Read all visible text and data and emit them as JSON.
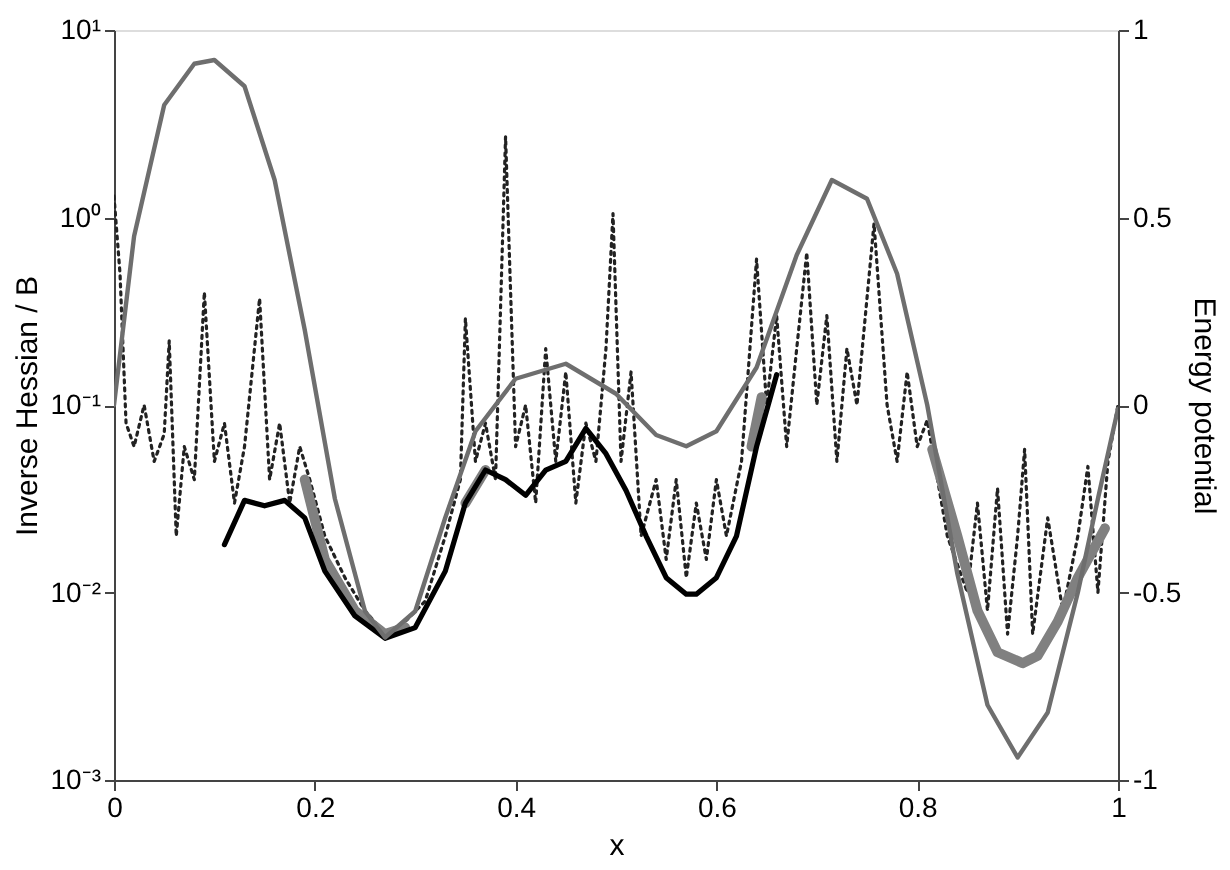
{
  "chart_data": {
    "type": "line",
    "xlabel": "x",
    "ylabel": "Inverse Hessian / B",
    "y2label": "Energy potential",
    "xlim": [
      0,
      1
    ],
    "xticks": [
      0,
      0.2,
      0.4,
      0.6,
      0.8,
      1
    ],
    "log": "y",
    "ylim": [
      0.001,
      10
    ],
    "yticks": [
      {
        "value": 0.001,
        "label": "10⁻³"
      },
      {
        "value": 0.01,
        "label": "10⁻²"
      },
      {
        "value": 0.1,
        "label": "10⁻¹"
      },
      {
        "value": 1,
        "label": "10⁰"
      },
      {
        "value": 10,
        "label": "10¹"
      }
    ],
    "y2lim": [
      -1,
      1
    ],
    "y2ticks": [
      -1,
      -0.5,
      0,
      0.5,
      1
    ],
    "grid": false,
    "marker": "none",
    "series": [
      {
        "color": "#222222",
        "line_style": "dotted",
        "x": [
          0.0,
          0.006,
          0.012,
          0.02,
          0.03,
          0.04,
          0.05,
          0.055,
          0.062,
          0.07,
          0.08,
          0.09,
          0.1,
          0.11,
          0.12,
          0.13,
          0.145,
          0.155,
          0.165,
          0.175,
          0.185,
          0.195,
          0.21,
          0.23,
          0.25,
          0.27,
          0.29,
          0.31,
          0.33,
          0.345,
          0.35,
          0.36,
          0.37,
          0.38,
          0.39,
          0.4,
          0.41,
          0.42,
          0.43,
          0.44,
          0.45,
          0.46,
          0.47,
          0.48,
          0.49,
          0.497,
          0.505,
          0.515,
          0.525,
          0.54,
          0.55,
          0.56,
          0.57,
          0.58,
          0.59,
          0.6,
          0.61,
          0.625,
          0.64,
          0.65,
          0.66,
          0.67,
          0.68,
          0.69,
          0.7,
          0.71,
          0.72,
          0.73,
          0.74,
          0.757,
          0.77,
          0.78,
          0.79,
          0.8,
          0.81,
          0.83,
          0.85,
          0.86,
          0.87,
          0.88,
          0.89,
          0.9,
          0.907,
          0.915,
          0.93,
          0.945,
          0.96,
          0.97,
          0.98,
          0.99,
          1.0
        ],
        "values": [
          1.3,
          0.5,
          0.08,
          0.06,
          0.1,
          0.05,
          0.07,
          0.22,
          0.02,
          0.06,
          0.04,
          0.4,
          0.05,
          0.08,
          0.03,
          0.06,
          0.37,
          0.04,
          0.08,
          0.03,
          0.06,
          0.04,
          0.02,
          0.012,
          0.008,
          0.006,
          0.007,
          0.009,
          0.02,
          0.04,
          0.29,
          0.05,
          0.08,
          0.04,
          2.7,
          0.06,
          0.1,
          0.03,
          0.2,
          0.05,
          0.15,
          0.03,
          0.08,
          0.05,
          0.2,
          1.05,
          0.05,
          0.15,
          0.02,
          0.04,
          0.015,
          0.04,
          0.012,
          0.03,
          0.015,
          0.04,
          0.02,
          0.05,
          0.6,
          0.1,
          0.3,
          0.06,
          0.2,
          0.65,
          0.1,
          0.3,
          0.05,
          0.2,
          0.1,
          0.93,
          0.1,
          0.05,
          0.15,
          0.06,
          0.083,
          0.02,
          0.01,
          0.03,
          0.008,
          0.036,
          0.006,
          0.02,
          0.058,
          0.006,
          0.025,
          0.008,
          0.02,
          0.047,
          0.01,
          0.05,
          0.1
        ]
      },
      {
        "color": "#808080",
        "line_style": "solid",
        "x": [
          0.19,
          0.21,
          0.24,
          0.27,
          0.29,
          0.32,
          0.35,
          0.37,
          0.5,
          0.635,
          0.645,
          0.7,
          0.815,
          0.84,
          0.86,
          0.88,
          0.905,
          0.92,
          0.94,
          0.96,
          0.987
        ],
        "values": [
          0.04,
          0.015,
          0.008,
          0.006,
          0.0065,
          null,
          0.03,
          0.045,
          null,
          0.06,
          0.11,
          null,
          0.058,
          0.02,
          0.008,
          0.0048,
          0.0042,
          0.0046,
          0.007,
          0.012,
          0.022
        ]
      },
      {
        "color": "#000000",
        "line_style": "solid",
        "x": [
          0.11,
          0.13,
          0.15,
          0.17,
          0.19,
          0.21,
          0.24,
          0.27,
          0.3,
          0.33,
          0.35,
          0.37,
          0.39,
          0.41,
          0.43,
          0.45,
          0.47,
          0.49,
          0.51,
          0.53,
          0.55,
          0.57,
          0.58,
          0.6,
          0.62,
          0.64,
          0.66
        ],
        "values": [
          0.018,
          0.031,
          0.029,
          0.031,
          0.025,
          0.013,
          0.0075,
          0.0057,
          0.0065,
          0.013,
          0.03,
          0.045,
          0.04,
          0.033,
          0.045,
          0.05,
          0.075,
          0.055,
          0.035,
          0.02,
          0.012,
          0.0098,
          0.0098,
          0.012,
          0.02,
          0.06,
          0.145
        ]
      },
      {
        "color": "#6e6e6e",
        "line_style": "solid",
        "axis": "y2",
        "x": [
          0,
          0.02,
          0.05,
          0.08,
          0.1,
          0.13,
          0.16,
          0.19,
          0.22,
          0.25,
          0.27,
          0.3,
          0.33,
          0.36,
          0.4,
          0.45,
          0.5,
          0.54,
          0.57,
          0.6,
          0.64,
          0.68,
          0.715,
          0.75,
          0.78,
          0.81,
          0.84,
          0.87,
          0.9,
          0.93,
          0.96,
          0.98,
          1.0
        ],
        "values": [
          0.0,
          0.45,
          0.8,
          0.91,
          0.92,
          0.85,
          0.6,
          0.2,
          -0.25,
          -0.55,
          -0.62,
          -0.55,
          -0.3,
          -0.07,
          0.07,
          0.11,
          0.03,
          -0.08,
          -0.11,
          -0.07,
          0.1,
          0.4,
          0.6,
          0.55,
          0.35,
          0.0,
          -0.45,
          -0.8,
          -0.94,
          -0.82,
          -0.5,
          -0.25,
          -0.01
        ]
      }
    ]
  }
}
